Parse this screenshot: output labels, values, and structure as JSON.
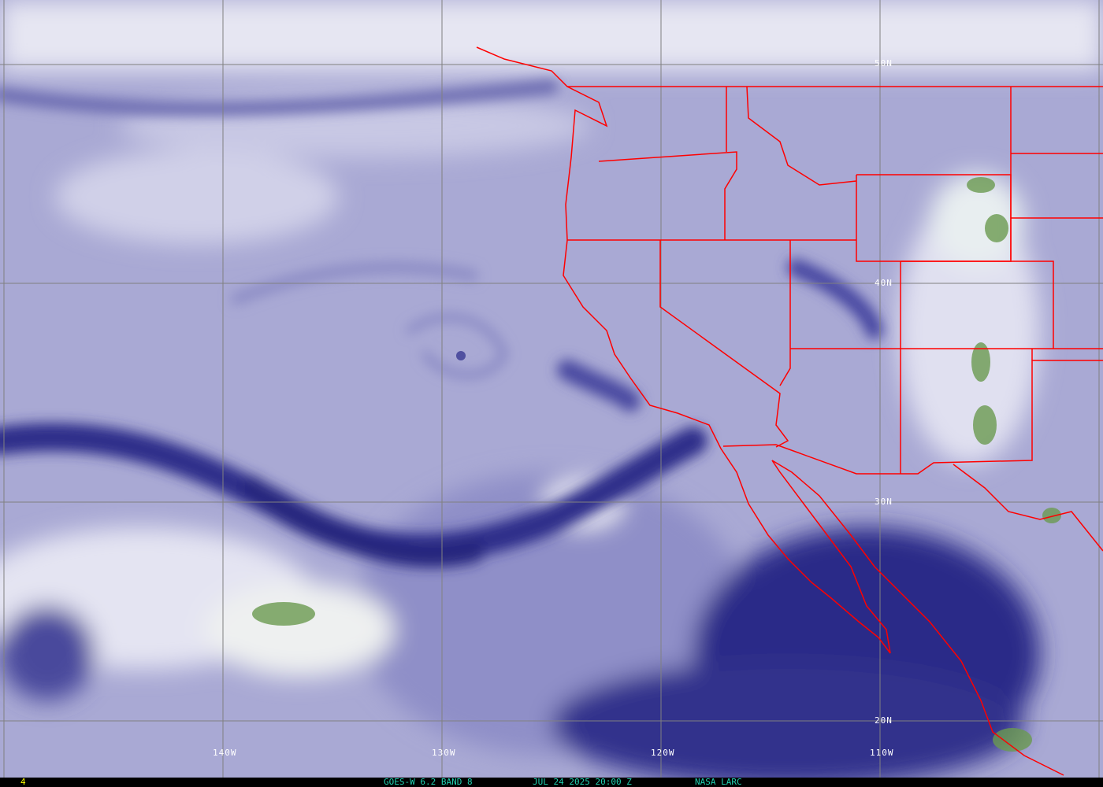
{
  "map": {
    "product": "GOES-W 6.2 BAND 8",
    "datetime": "JUL 24 2025 20:00 Z",
    "source": "NASA LARC",
    "frame_number": "4",
    "latitude_labels": [
      "50N",
      "40N",
      "30N",
      "20N"
    ],
    "longitude_labels": [
      "140W",
      "130W",
      "120W",
      "110W"
    ],
    "colors": {
      "border": "#ff0000",
      "grid": "#808080",
      "moist_dark": "#1e1e78",
      "dry_light": "#e8e8f4",
      "cloud_green": "#5a9040",
      "footer_text": "#20d0b0",
      "frame_text": "#ffff00"
    }
  }
}
